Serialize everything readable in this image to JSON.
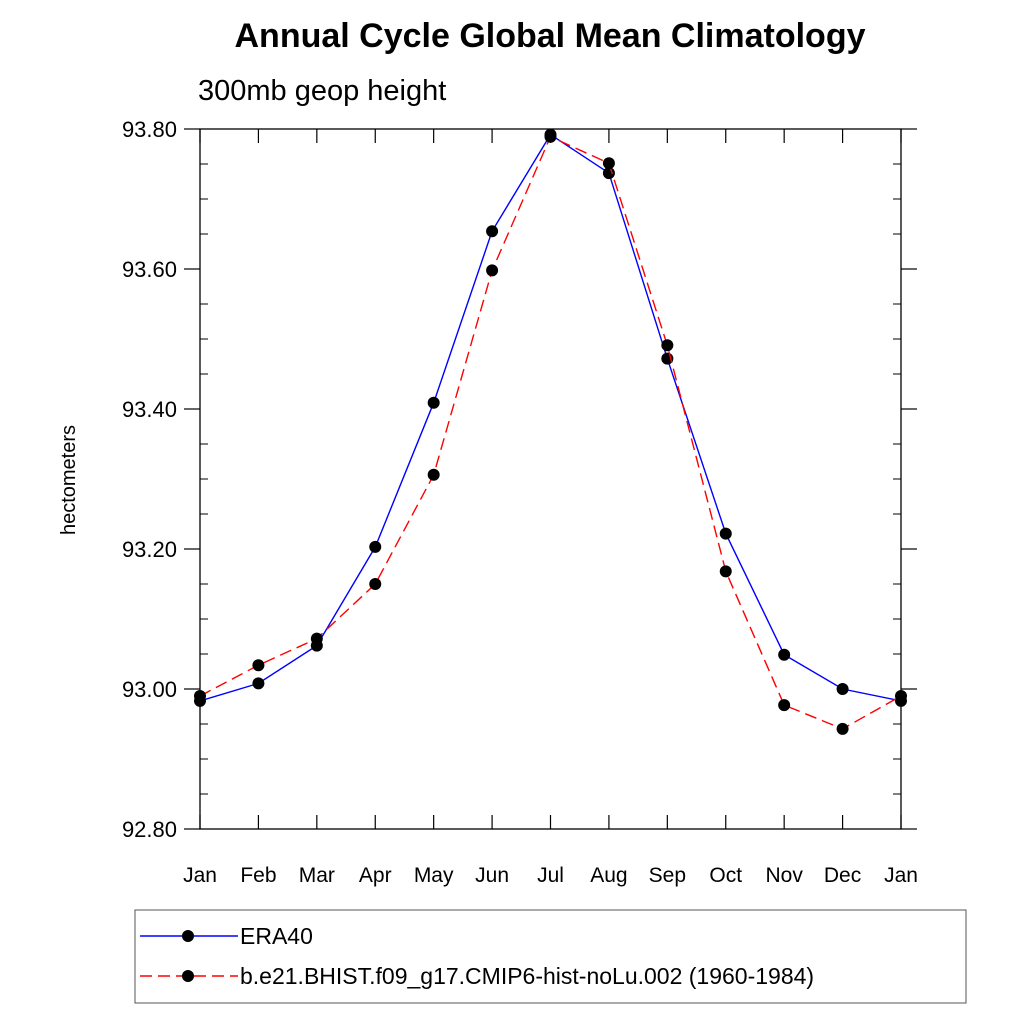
{
  "chart_data": {
    "type": "line",
    "title": "Annual Cycle Global Mean Climatology",
    "subtitle": "300mb geop height",
    "xlabel": "",
    "ylabel": "hectometers",
    "categories": [
      "Jan",
      "Feb",
      "Mar",
      "Apr",
      "May",
      "Jun",
      "Jul",
      "Aug",
      "Sep",
      "Oct",
      "Nov",
      "Dec",
      "Jan"
    ],
    "ylim": [
      92.8,
      93.8
    ],
    "yticks": [
      "92.80",
      "93.00",
      "93.20",
      "93.40",
      "93.60",
      "93.80"
    ],
    "grid": false,
    "legend_position": "bottom",
    "series": [
      {
        "name": "ERA40",
        "color": "#0000ff",
        "line_style": "solid",
        "marker": "filled-circle",
        "values": [
          92.983,
          93.008,
          93.062,
          93.203,
          93.409,
          93.654,
          93.792,
          93.737,
          93.472,
          93.222,
          93.049,
          93.0,
          92.983
        ]
      },
      {
        "name": "b.e21.BHIST.f09_g17.CMIP6-hist-noLu.002 (1960-1984)",
        "color": "#ff0000",
        "line_style": "dashed",
        "marker": "filled-circle",
        "values": [
          92.99,
          93.034,
          93.072,
          93.15,
          93.306,
          93.598,
          93.789,
          93.751,
          93.491,
          93.168,
          92.977,
          92.943,
          92.99
        ]
      }
    ]
  }
}
